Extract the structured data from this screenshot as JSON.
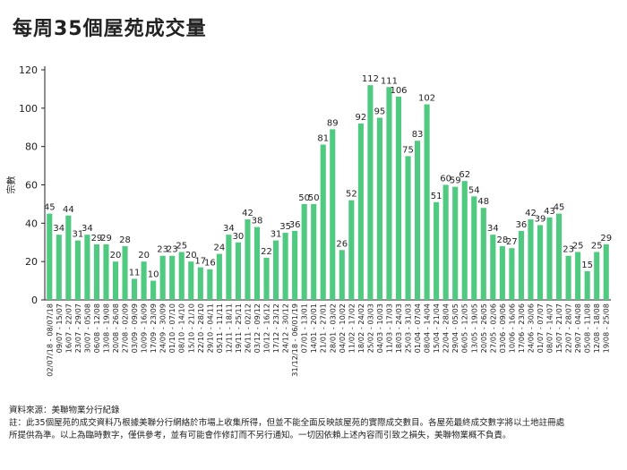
{
  "title": "每周35個屋苑成交量",
  "colors": {
    "bar": "#4fca80",
    "axis": "#222222",
    "text": "#222222"
  },
  "footer": {
    "source": "資料來源：美聯物業分行紀錄",
    "note_line1": "註：此35個屋苑的成交資料乃根據美聯分行網絡於市場上收集所得，但並不能全面反映該屋苑的實際成交數目。各屋苑最終成交數字將以土地註冊處",
    "note_line2": "所提供為準。以上為臨時數字，僅供參考，並有可能會作修訂而不另行通知。一切因依賴上述內容而引致之損失，美聯物業概不負責。"
  },
  "chart_data": {
    "type": "bar",
    "title": "每周35個屋苑成交量",
    "xlabel": "",
    "ylabel": "宗數",
    "ylim": [
      0,
      120
    ],
    "yticks": [
      0,
      20,
      40,
      60,
      80,
      100,
      120
    ],
    "grid": false,
    "categories": [
      "02/07/18 - 08/07/18",
      "09/07 - 15/07",
      "16/07 - 22/07",
      "23/07 - 29/07",
      "30/07 - 05/08",
      "06/08 - 12/08",
      "13/08 - 19/08",
      "20/08 - 26/08",
      "27/08 - 02/09",
      "03/09 - 09/09",
      "10/09 - 16/09",
      "17/09 - 23/09",
      "24/09 - 30/09",
      "01/10 - 07/10",
      "08/10 - 14/10",
      "15/10 - 21/10",
      "22/10 - 28/10",
      "29/10 - 04/11",
      "05/11 - 11/11",
      "12/11 - 18/11",
      "19/11 - 25/11",
      "26/11 - 02/12",
      "03/12 - 09/12",
      "10/12 - 16/12",
      "17/12 - 23/12",
      "24/12 - 30/12",
      "31/12/18 - 06/01/19",
      "07/01 - 13/01",
      "14/01 - 20/01",
      "21/01 - 27/01",
      "28/01 - 03/02",
      "04/02 - 10/02",
      "11/02 - 17/02",
      "18/02 - 24/02",
      "25/02 - 03/03",
      "04/03 - 10/03",
      "11/03 - 17/03",
      "18/03 - 24/03",
      "25/03 - 31/03",
      "01/04 - 07/04",
      "08/04 - 14/04",
      "15/04 - 21/04",
      "22/04 - 28/04",
      "29/04 - 05/05",
      "06/05 - 12/05",
      "13/05 - 19/05",
      "20/05 - 26/05",
      "27/05 - 02/06",
      "03/06 - 09/06",
      "10/06 - 16/06",
      "17/06 - 23/06",
      "24/06 - 30/06",
      "01/07 - 07/07",
      "08/07 - 14/07",
      "15/07 - 21/07",
      "22/07 - 28/07",
      "29/07 - 04/08",
      "05/08 - 11/08",
      "12/08 - 18/08",
      "19/08 - 25/08"
    ],
    "values": [
      45,
      34,
      44,
      31,
      34,
      29,
      29,
      20,
      28,
      11,
      20,
      10,
      23,
      23,
      25,
      20,
      17,
      16,
      24,
      34,
      30,
      42,
      38,
      22,
      31,
      35,
      36,
      50,
      50,
      81,
      89,
      26,
      52,
      92,
      112,
      95,
      111,
      106,
      75,
      83,
      102,
      51,
      60,
      59,
      62,
      54,
      48,
      34,
      28,
      27,
      36,
      42,
      39,
      43,
      45,
      23,
      25,
      15,
      25,
      29
    ]
  }
}
